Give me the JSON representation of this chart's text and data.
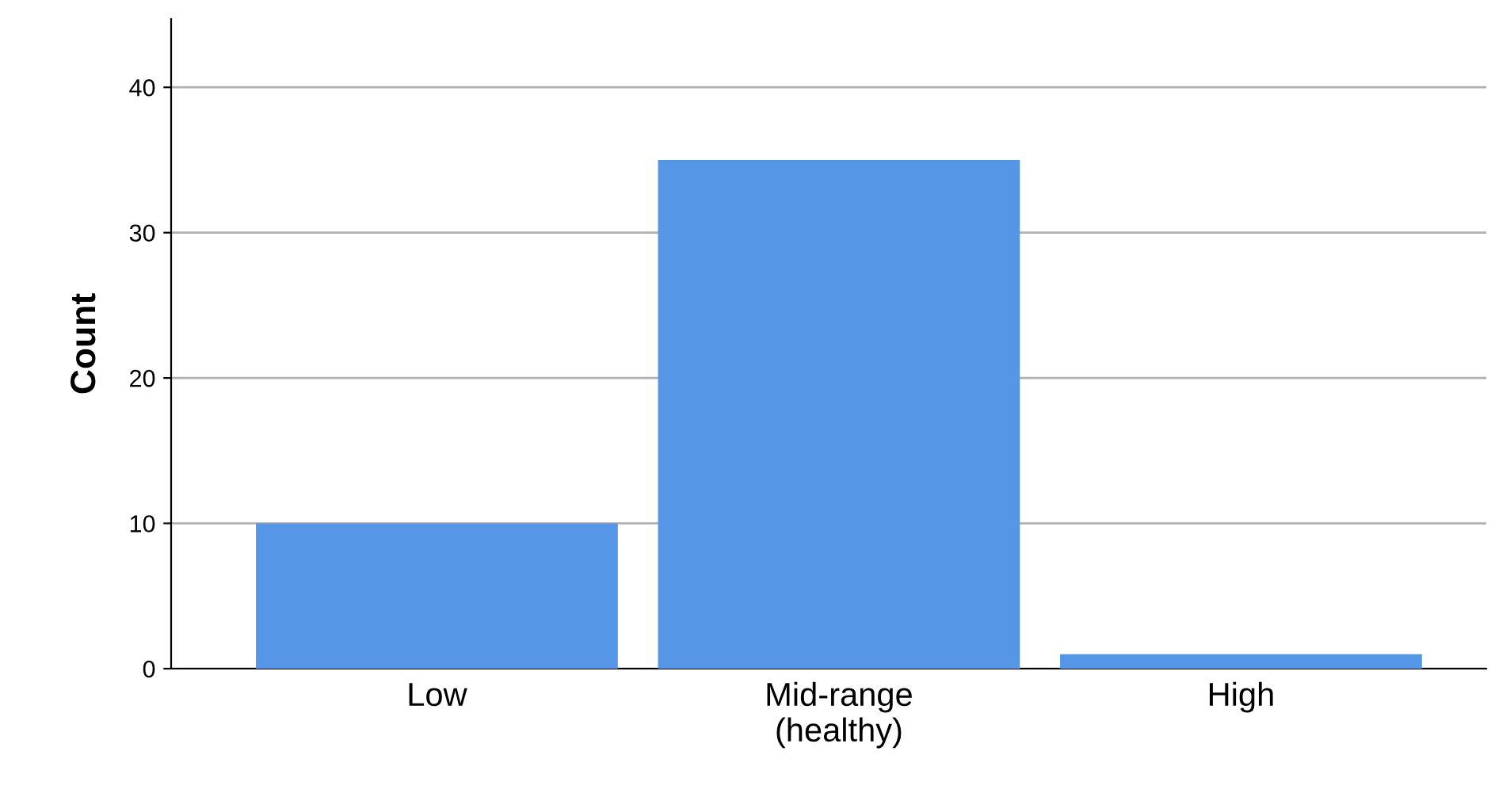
{
  "chart_data": {
    "type": "bar",
    "ylabel": "Count",
    "categories": [
      "Low",
      "Mid-range\n(healthy)",
      "High"
    ],
    "values": [
      10,
      35,
      1
    ],
    "color": "#5596e6",
    "ylim": [
      0,
      44.7
    ],
    "yticks": [
      0,
      10,
      20,
      30,
      40
    ],
    "grid": "y",
    "legend": false
  }
}
